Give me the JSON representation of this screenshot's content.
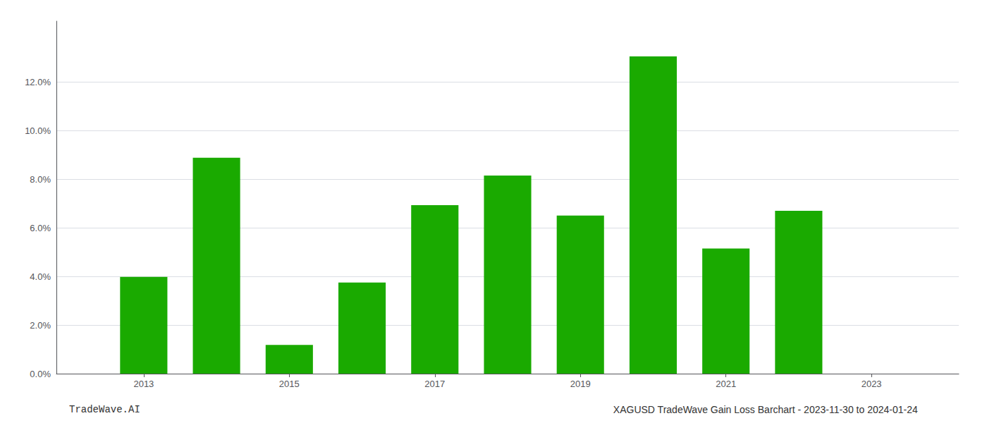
{
  "chart_data": {
    "type": "bar",
    "title": "XAGUSD TradeWave Gain Loss Barchart - 2023-11-30 to 2024-01-24",
    "annotations": [
      "TradeWave.AI"
    ],
    "x": [
      2013,
      2014,
      2015,
      2016,
      2017,
      2018,
      2019,
      2020,
      2021,
      2022
    ],
    "values": [
      0.0398,
      0.0888,
      0.0118,
      0.0375,
      0.0693,
      0.0815,
      0.065,
      0.1305,
      0.0515,
      0.067
    ],
    "color": "#1aaa00",
    "xlim": [
      2011.8,
      2024.2
    ],
    "xticks": [
      2013,
      2015,
      2017,
      2019,
      2021,
      2023
    ],
    "ylim": [
      0,
      0.145
    ],
    "yticks": [
      {
        "value": 0.0,
        "label": "0.0%"
      },
      {
        "value": 0.02,
        "label": "2.0%"
      },
      {
        "value": 0.04,
        "label": "4.0%"
      },
      {
        "value": 0.06,
        "label": "6.0%"
      },
      {
        "value": 0.08,
        "label": "8.0%"
      },
      {
        "value": 0.1,
        "label": "10.0%"
      },
      {
        "value": 0.12,
        "label": "12.0%"
      }
    ],
    "grid": true
  }
}
